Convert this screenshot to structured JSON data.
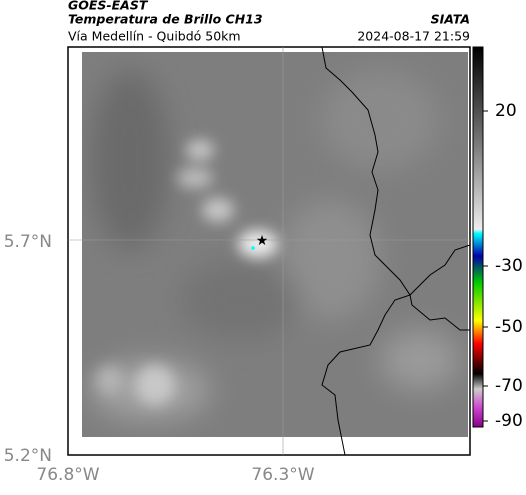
{
  "header": {
    "source": "GOES-EAST",
    "product": "Temperatura de Brillo CH13",
    "region": "Vía Medellín - Quibdó 50km",
    "agency": "SIATA",
    "datetime": "2024-08-17 21:59"
  },
  "map": {
    "lat_labels": [
      "5.7°N",
      "5.2°N"
    ],
    "lon_labels": [
      "76.8°W",
      "76.3°W"
    ]
  },
  "colorbar": {
    "ticks": [
      "20",
      "-30",
      "-50",
      "-70",
      "-90"
    ]
  }
}
